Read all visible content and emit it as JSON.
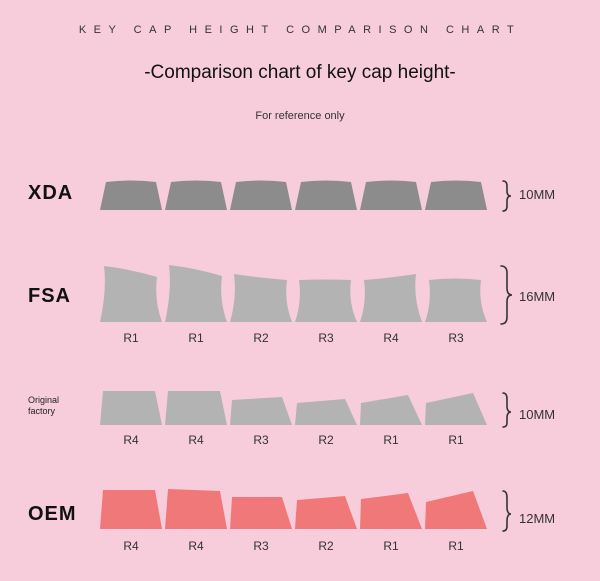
{
  "header": {
    "banner": "KEY CAP HEIGHT COMPARISON CHART",
    "title": "-Comparison chart of key cap height-",
    "subtitle": "For reference only"
  },
  "colors": {
    "background": "#f7cddb",
    "xda_key": "#8c8c8c",
    "gray_key": "#b3b3b3",
    "oem_key": "#f07878"
  },
  "profiles": [
    {
      "id": "xda",
      "label": "XDA",
      "height": "10MM",
      "rows": []
    },
    {
      "id": "fsa",
      "label": "FSA",
      "height": "16MM",
      "rows": [
        "R1",
        "R1",
        "R2",
        "R3",
        "R4",
        "R3"
      ]
    },
    {
      "id": "factory",
      "label": "Original factory",
      "height": "10MM",
      "rows": [
        "R4",
        "R4",
        "R3",
        "R2",
        "R1",
        "R1"
      ]
    },
    {
      "id": "oem",
      "label": "OEM",
      "height": "12MM",
      "rows": [
        "R4",
        "R4",
        "R3",
        "R2",
        "R1",
        "R1"
      ]
    }
  ]
}
